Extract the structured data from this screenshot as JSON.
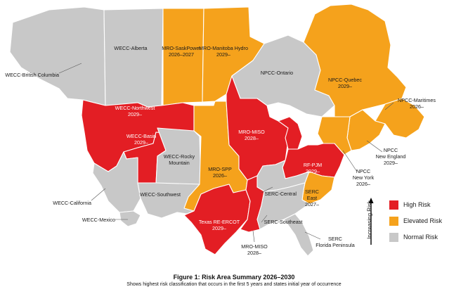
{
  "colors": {
    "high": "#e31e24",
    "elevated": "#f5a21c",
    "normal": "#c8c8c8",
    "border": "#ffffff"
  },
  "regions": {
    "wecc_british_columbia": "WECC-British Columbia",
    "wecc_alberta": "WECC-Alberta",
    "mro_saskpower": "MRO-SaskPower",
    "mro_saskpower_year": "2026–2027",
    "mro_manitoba": "MRO-Manitoba Hydro",
    "mro_manitoba_year": "2029–",
    "npcc_ontario": "NPCC-Ontario",
    "npcc_quebec": "NPCC-Quebec",
    "npcc_quebec_year": "2029–",
    "npcc_maritimes": "NPCC-Maritimes",
    "npcc_maritimes_year": "2026–",
    "npcc_new_england_1": "NPCC",
    "npcc_new_england_2": "New England",
    "npcc_new_england_year": "2029–",
    "npcc_new_york_1": "NPCC",
    "npcc_new_york_2": "New York",
    "npcc_new_york_year": "2026–",
    "wecc_northwest": "WECC-Northwest",
    "wecc_northwest_year": "2029–",
    "wecc_basin": "WECC-Basin",
    "wecc_basin_year": "2029–",
    "wecc_rocky_1": "WECC-Rocky",
    "wecc_rocky_2": "Mountain",
    "mro_miso_north": "MRO-MISO",
    "mro_miso_north_year": "2028–",
    "mro_spp": "MRO-SPP",
    "mro_spp_year": "2026–",
    "rf_pjm": "RF-PJM",
    "rf_pjm_year": "2029–",
    "wecc_southwest": "WECC-Southwest",
    "wecc_california": "WECC-California",
    "wecc_mexico": "WECC-Mexico",
    "serc_central": "SERC-Central",
    "serc_east_1": "SERC",
    "serc_east_2": "East",
    "serc_east_year": "2027–",
    "texas_ercot": "Texas RE-ERCOT",
    "texas_ercot_year": "2029–",
    "serc_southeast": "SERC-Southeast",
    "mro_miso_south": "MRO-MISO",
    "mro_miso_south_year": "2028–",
    "serc_florida_1": "SERC",
    "serc_florida_2": "Florida Peninsula"
  },
  "legend": {
    "axis_label": "Increasing Risk",
    "items": [
      {
        "label": "High Risk",
        "color": "#e31e24"
      },
      {
        "label": "Elevated Risk",
        "color": "#f5a21c"
      },
      {
        "label": "Normal Risk",
        "color": "#c8c8c8"
      }
    ]
  },
  "caption": {
    "title": "Figure 1: Risk Area Summary 2026–2030",
    "subtitle": "Shows highest risk classification that occurs in the first 5 years and states initial year of occurrence"
  }
}
